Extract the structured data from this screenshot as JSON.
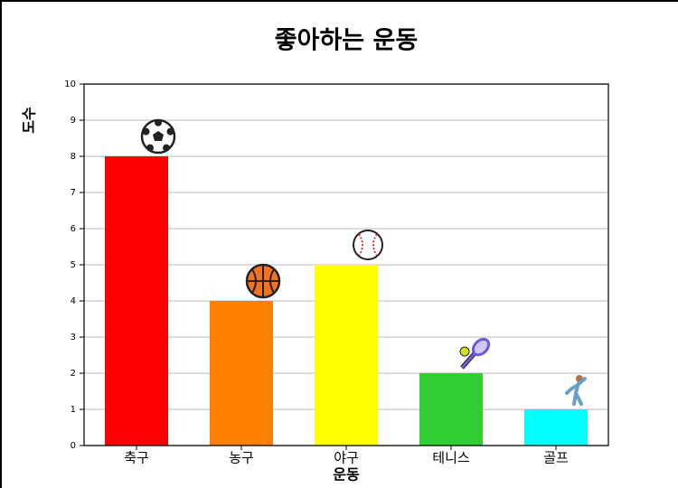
{
  "chart_data": {
    "type": "bar",
    "title": "좋아하는 운동",
    "x_label": "운동",
    "y_label": "도수",
    "categories": [
      "축구",
      "농구",
      "야구",
      "테니스",
      "골프"
    ],
    "values": [
      8,
      4,
      5,
      2,
      1
    ],
    "colors": [
      "#ff0000",
      "#ff7f00",
      "#ffff00",
      "#32cd32",
      "#00ffff"
    ],
    "ylim": [
      0,
      10
    ],
    "yticks": [
      0,
      1,
      2,
      3,
      4,
      5,
      6,
      7,
      8,
      9,
      10
    ],
    "grid": true
  }
}
